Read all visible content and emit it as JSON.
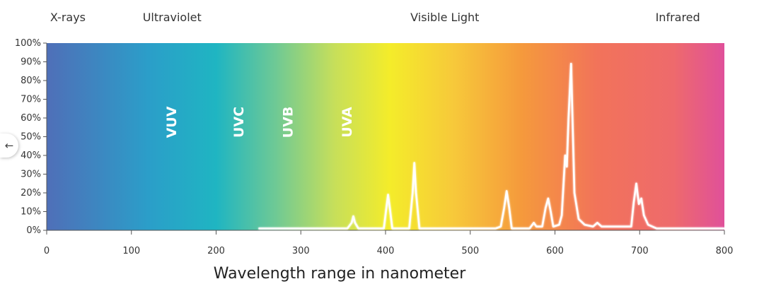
{
  "chart_data": {
    "type": "line",
    "title": "",
    "xlabel": "Wavelength range in nanometer",
    "ylabel": "",
    "xlim": [
      0,
      800
    ],
    "ylim": [
      0,
      100
    ],
    "x_ticks": [
      0,
      100,
      200,
      300,
      400,
      500,
      600,
      700,
      800
    ],
    "y_ticks": [
      "0%",
      "10%",
      "20%",
      "30%",
      "40%",
      "50%",
      "60%",
      "70%",
      "80%",
      "90%",
      "100%"
    ],
    "grid": false,
    "legend": "none",
    "region_labels": [
      {
        "text": "X-rays",
        "x": 25
      },
      {
        "text": "Ultraviolet",
        "x": 148
      },
      {
        "text": "Visible Light",
        "x": 470
      },
      {
        "text": "Infrared",
        "x": 745
      }
    ],
    "band_labels": [
      {
        "text": "VUV",
        "x": 148
      },
      {
        "text": "UVC",
        "x": 227
      },
      {
        "text": "UVB",
        "x": 285
      },
      {
        "text": "UVA",
        "x": 355
      }
    ],
    "background_gradient": [
      {
        "x": 0,
        "color": "#4f6fb8"
      },
      {
        "x": 120,
        "color": "#2b9ec9"
      },
      {
        "x": 200,
        "color": "#1fb5c2"
      },
      {
        "x": 270,
        "color": "#6ec995"
      },
      {
        "x": 340,
        "color": "#c7df5a"
      },
      {
        "x": 405,
        "color": "#f4ec2a"
      },
      {
        "x": 480,
        "color": "#f7c93a"
      },
      {
        "x": 560,
        "color": "#f59a3c"
      },
      {
        "x": 650,
        "color": "#f2735a"
      },
      {
        "x": 740,
        "color": "#ee6a6c"
      },
      {
        "x": 800,
        "color": "#e0509a"
      }
    ],
    "series": [
      {
        "color": "#ffffff",
        "points": [
          [
            250,
            1
          ],
          [
            355,
            1
          ],
          [
            360,
            4
          ],
          [
            362,
            7.5
          ],
          [
            364,
            4
          ],
          [
            368,
            1
          ],
          [
            398,
            1
          ],
          [
            401,
            12
          ],
          [
            403,
            19
          ],
          [
            405,
            12
          ],
          [
            408,
            1
          ],
          [
            428,
            1
          ],
          [
            432,
            20
          ],
          [
            434,
            36
          ],
          [
            436,
            20
          ],
          [
            440,
            1
          ],
          [
            530,
            1
          ],
          [
            536,
            2
          ],
          [
            540,
            12
          ],
          [
            543,
            21
          ],
          [
            546,
            12
          ],
          [
            549,
            1
          ],
          [
            570,
            1
          ],
          [
            575,
            4
          ],
          [
            578,
            2
          ],
          [
            585,
            2
          ],
          [
            589,
            12
          ],
          [
            592,
            17
          ],
          [
            595,
            10
          ],
          [
            598,
            2
          ],
          [
            605,
            3
          ],
          [
            608,
            8
          ],
          [
            612,
            40
          ],
          [
            614,
            34
          ],
          [
            616,
            60
          ],
          [
            619,
            89
          ],
          [
            621,
            55
          ],
          [
            623,
            20
          ],
          [
            628,
            6
          ],
          [
            635,
            3
          ],
          [
            645,
            2
          ],
          [
            650,
            4
          ],
          [
            655,
            2
          ],
          [
            690,
            2
          ],
          [
            693,
            15
          ],
          [
            696,
            25
          ],
          [
            699,
            14
          ],
          [
            702,
            17
          ],
          [
            705,
            8
          ],
          [
            710,
            3
          ],
          [
            720,
            1
          ],
          [
            800,
            1
          ]
        ]
      }
    ]
  },
  "ui": {
    "back_icon": "←"
  }
}
